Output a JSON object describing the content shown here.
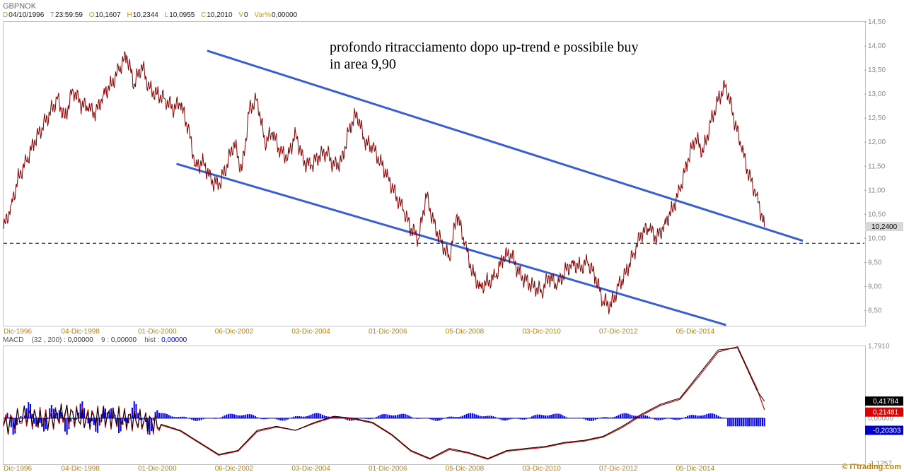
{
  "header": {
    "symbol": "GBPNOK",
    "date_key": "D",
    "date_val": "04/10/1996",
    "time_key": "T",
    "time_val": "23:59:59",
    "open_key": "O",
    "open_val": "10,1607",
    "high_key": "H",
    "high_val": "10,2344",
    "low_key": "L",
    "low_val": "10,0955",
    "close_key": "C",
    "close_val": "10,2010",
    "vol_key": "V",
    "vol_val": "0",
    "var_key": "Var%",
    "var_val": "0,00000"
  },
  "annotation": {
    "line1": "profondo ritracciamento dopo up-trend e possibile buy",
    "line2": "in area 9,90"
  },
  "macd_info": {
    "name": "MACD",
    "params": "(32 , 200) :",
    "macd_val": "0,00000",
    "signal_label": "9 :",
    "signal_val": "0,00000",
    "hist_label": "hist :",
    "hist_val": "0,00000"
  },
  "footer": {
    "logo": "© ITtrading.com"
  },
  "colors": {
    "price_line": "#8b0000",
    "channel": "#3a5fd0",
    "macd_line": "#000000",
    "signal_line": "#cc0000",
    "hist": "#0000ff",
    "last_price_bg": "#d8d8d8"
  },
  "chart_data": [
    {
      "type": "line",
      "title": "GBPNOK",
      "x_tick_labels": [
        "Dic-1996",
        "04-Dic-1998",
        "01-Dic-2000",
        "06-Dic-2002",
        "03-Dic-2004",
        "01-Dic-2006",
        "05-Dic-2008",
        "03-Dic-2010",
        "07-Dic-2012",
        "05-Dic-2014"
      ],
      "y_tick_labels": [
        "14,50",
        "14,00",
        "13,50",
        "13,00",
        "12,50",
        "12,00",
        "11,50",
        "11,00",
        "10,50",
        "10,00",
        "9,50",
        "9,00",
        "8,50"
      ],
      "ylim": [
        8.2,
        14.5
      ],
      "xlim": [
        1996.9,
        2019.3
      ],
      "last_price_label": "10,2400",
      "last_price": 10.24,
      "horizontal_level": 9.9,
      "series": [
        {
          "x": [
            1996.9,
            1997.1,
            1997.3,
            1997.5,
            1997.7,
            1997.9,
            1998.1,
            1998.3,
            1998.5,
            1998.7,
            1998.9,
            1999.1,
            1999.3,
            1999.5,
            1999.7,
            1999.9,
            2000.1,
            2000.3,
            2000.5,
            2000.7,
            2000.9,
            2001.1,
            2001.3,
            2001.5,
            2001.7,
            2001.9,
            2002.1,
            2002.3,
            2002.5,
            2002.7,
            2002.9,
            2003.1,
            2003.3,
            2003.5,
            2003.7,
            2003.9,
            2004.1,
            2004.3,
            2004.5,
            2004.7,
            2004.9,
            2005.1,
            2005.3,
            2005.5,
            2005.7,
            2005.9,
            2006.1,
            2006.3,
            2006.5,
            2006.7,
            2006.9,
            2007.1,
            2007.3,
            2007.5,
            2007.7,
            2007.9,
            2008.1,
            2008.3,
            2008.5,
            2008.7,
            2008.9,
            2009.1,
            2009.3,
            2009.5,
            2009.7,
            2009.9,
            2010.1,
            2010.3,
            2010.5,
            2010.7,
            2010.9,
            2011.1,
            2011.3,
            2011.5,
            2011.7,
            2011.9,
            2012.1,
            2012.3,
            2012.5,
            2012.7,
            2012.9,
            2013.1,
            2013.3,
            2013.5,
            2013.7,
            2013.9,
            2014.1,
            2014.3,
            2014.5,
            2014.7,
            2014.9,
            2015.1,
            2015.3,
            2015.5,
            2015.7,
            2015.9,
            2016.1,
            2016.3,
            2016.5,
            2016.7
          ],
          "y": [
            10.2,
            10.7,
            11.3,
            11.6,
            12.0,
            12.3,
            12.6,
            12.9,
            12.5,
            13.1,
            12.8,
            12.7,
            12.6,
            13.0,
            13.2,
            13.5,
            13.8,
            13.2,
            13.6,
            13.1,
            13.0,
            12.9,
            12.7,
            12.8,
            12.3,
            11.5,
            11.6,
            11.2,
            11.1,
            11.5,
            12.0,
            11.4,
            12.7,
            12.9,
            12.0,
            12.2,
            11.8,
            11.7,
            12.2,
            11.6,
            11.5,
            11.7,
            11.8,
            11.5,
            11.6,
            12.3,
            12.6,
            12.0,
            11.9,
            11.6,
            11.3,
            10.9,
            10.6,
            10.2,
            10.0,
            10.9,
            10.3,
            9.9,
            9.6,
            10.5,
            9.9,
            9.3,
            9.0,
            9.1,
            9.2,
            9.6,
            9.7,
            9.3,
            9.1,
            9.0,
            8.9,
            9.2,
            9.0,
            9.3,
            9.5,
            9.4,
            9.5,
            9.2,
            8.7,
            8.6,
            9.0,
            9.3,
            9.7,
            10.1,
            10.2,
            10.0,
            10.3,
            10.6,
            11.0,
            11.6,
            12.1,
            11.8,
            12.4,
            12.9,
            13.2,
            12.5,
            11.9,
            11.3,
            10.9,
            10.24
          ]
        }
      ],
      "channel_upper": [
        [
          2002.2,
          13.9
        ],
        [
          2017.7,
          9.95
        ]
      ],
      "channel_lower": [
        [
          2001.4,
          11.55
        ],
        [
          2015.7,
          8.2
        ]
      ]
    },
    {
      "type": "line",
      "title": "MACD",
      "x_tick_labels": [
        "Dic-1996",
        "04-Dic-1998",
        "01-Dic-2000",
        "06-Dic-2002",
        "03-Dic-2004",
        "01-Dic-2006",
        "05-Dic-2008",
        "03-Dic-2010",
        "07-Dic-2012",
        "05-Dic-2014"
      ],
      "y_tick_labels": [
        "1,7910",
        "0,00000",
        "-1,1257"
      ],
      "value_labels": [
        "0,41784",
        "0,21481",
        "-0,20303"
      ],
      "ylim": [
        -1.1257,
        1.791
      ],
      "series": [
        {
          "name": "MACD",
          "x": [
            1996.9,
            1997.5,
            1998.0,
            1998.5,
            1999.0,
            1999.5,
            2000.0,
            2000.5,
            2001.0,
            2001.5,
            2002.0,
            2002.5,
            2003.0,
            2003.5,
            2004.0,
            2004.5,
            2005.0,
            2005.5,
            2006.0,
            2006.5,
            2007.0,
            2007.5,
            2008.0,
            2008.5,
            2009.0,
            2009.5,
            2010.0,
            2010.5,
            2011.0,
            2011.5,
            2012.0,
            2012.5,
            2013.0,
            2013.5,
            2014.0,
            2014.5,
            2015.0,
            2015.5,
            2016.0,
            2016.5,
            2016.7
          ],
          "y": [
            -0.2,
            0.1,
            -0.1,
            0.15,
            -0.05,
            0.05,
            0.0,
            -0.05,
            -0.15,
            -0.3,
            -0.6,
            -0.9,
            -0.8,
            -0.3,
            -0.2,
            -0.3,
            -0.1,
            0.05,
            0.0,
            -0.1,
            -0.4,
            -0.8,
            -1.0,
            -0.75,
            -0.85,
            -1.0,
            -0.8,
            -0.75,
            -0.7,
            -0.6,
            -0.55,
            -0.45,
            -0.2,
            0.1,
            0.35,
            0.5,
            1.1,
            1.7,
            1.75,
            0.7,
            0.42
          ]
        },
        {
          "name": "Signal",
          "x": [
            1996.9,
            1997.5,
            1998.0,
            1998.5,
            1999.0,
            1999.5,
            2000.0,
            2000.5,
            2001.0,
            2001.5,
            2002.0,
            2002.5,
            2003.0,
            2003.5,
            2004.0,
            2004.5,
            2005.0,
            2005.5,
            2006.0,
            2006.5,
            2007.0,
            2007.5,
            2008.0,
            2008.5,
            2009.0,
            2009.5,
            2010.0,
            2010.5,
            2011.0,
            2011.5,
            2012.0,
            2012.5,
            2013.0,
            2013.5,
            2014.0,
            2014.5,
            2015.0,
            2015.5,
            2016.0,
            2016.5,
            2016.7
          ],
          "y": [
            -0.15,
            0.05,
            -0.05,
            0.1,
            0.0,
            0.03,
            0.0,
            -0.07,
            -0.17,
            -0.32,
            -0.62,
            -0.92,
            -0.82,
            -0.33,
            -0.22,
            -0.3,
            -0.12,
            0.03,
            -0.02,
            -0.12,
            -0.42,
            -0.82,
            -1.02,
            -0.78,
            -0.87,
            -1.02,
            -0.82,
            -0.77,
            -0.72,
            -0.62,
            -0.57,
            -0.47,
            -0.23,
            0.07,
            0.32,
            0.47,
            1.05,
            1.65,
            1.78,
            0.75,
            0.21
          ]
        }
      ]
    }
  ]
}
